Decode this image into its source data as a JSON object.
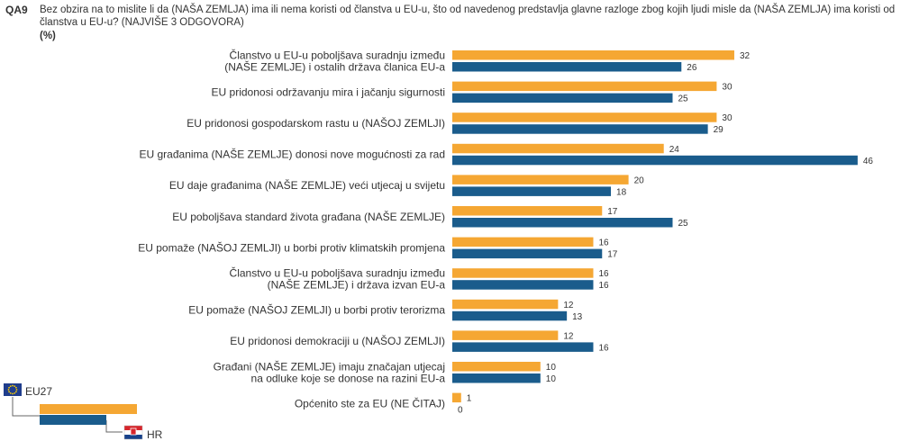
{
  "question": {
    "code": "QA9",
    "text": "Bez obzira na to mislite li da (NAŠA ZEMLJA) ima ili nema koristi od članstva u EU-u, što od navedenog predstavlja glavne razloge zbog kojih ljudi misle da (NAŠA ZEMLJA) ima koristi od članstva u EU-u? (NAJVIŠE 3 ODGOVORA)",
    "unit": "(%)"
  },
  "legend": {
    "eu_label": "EU27",
    "hr_label": "HR"
  },
  "colors": {
    "eu27": "#f5a733",
    "hr": "#1a5c8c",
    "flag_eu": "#1f3d8c",
    "flag_star": "#ffd200",
    "flag_hr_red": "#d7262c",
    "flag_hr_blue": "#17418a"
  },
  "chart_data": {
    "type": "bar",
    "orientation": "horizontal",
    "categories": [
      [
        "Članstvo u EU-u poboljšava suradnju između",
        "(NAŠE ZEMLJE) i ostalih država članica EU-a"
      ],
      [
        "EU pridonosi održavanju mira i jačanju sigurnosti"
      ],
      [
        "EU pridonosi gospodarskom rastu u (NAŠOJ ZEMLJI)"
      ],
      [
        "EU građanima (NAŠE ZEMLJE) donosi nove mogućnosti za rad"
      ],
      [
        "EU daje građanima (NAŠE ZEMLJE) veći utjecaj u svijetu"
      ],
      [
        "EU poboljšava standard života građana (NAŠE ZEMLJE)"
      ],
      [
        "EU pomaže (NAŠOJ ZEMLJI) u borbi protiv klimatskih promjena"
      ],
      [
        "Članstvo u EU-u poboljšava suradnju između",
        "(NAŠE ZEMLJE) i država izvan EU-a"
      ],
      [
        "EU pomaže (NAŠOJ ZEMLJI) u borbi protiv terorizma"
      ],
      [
        "EU pridonosi demokraciji u (NAŠOJ ZEMLJI)"
      ],
      [
        "Građani (NAŠE ZEMLJE) imaju značajan utjecaj",
        "na odluke koje se donose na razini EU-a"
      ],
      [
        "Općenito ste za EU (NE ČITAJ)"
      ]
    ],
    "series": [
      {
        "name": "EU27",
        "values": [
          32,
          30,
          30,
          24,
          20,
          17,
          16,
          16,
          12,
          12,
          10,
          1
        ]
      },
      {
        "name": "HR",
        "values": [
          26,
          25,
          29,
          46,
          18,
          25,
          17,
          16,
          13,
          16,
          10,
          0
        ]
      }
    ],
    "xlim": [
      0,
      46
    ],
    "grid": false
  }
}
